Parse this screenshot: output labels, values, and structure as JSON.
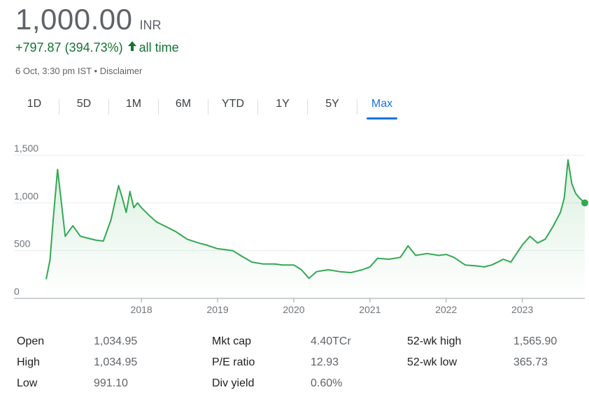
{
  "quote": {
    "price": "1,000.00",
    "currency": "INR",
    "change": "+797.87 (394.73%)",
    "change_period": "all time",
    "timestamp": "6 Oct, 3:30 pm IST",
    "separator": "•",
    "disclaimer": "Disclaimer",
    "up_color": "#137333"
  },
  "tabs": [
    {
      "label": "1D",
      "active": false
    },
    {
      "label": "5D",
      "active": false
    },
    {
      "label": "1M",
      "active": false
    },
    {
      "label": "6M",
      "active": false
    },
    {
      "label": "YTD",
      "active": false
    },
    {
      "label": "1Y",
      "active": false
    },
    {
      "label": "5Y",
      "active": false
    },
    {
      "label": "Max",
      "active": true
    }
  ],
  "chart_data": {
    "type": "line",
    "line_color": "#34a853",
    "fill": true,
    "grid": true,
    "ylim": [
      0,
      1500
    ],
    "yticks": [
      0,
      500,
      1000,
      1500
    ],
    "ytick_labels": [
      "0",
      "500",
      "1,000",
      "1,500"
    ],
    "xlim": [
      2016.75,
      2023.82
    ],
    "xticks": [
      2018,
      2019,
      2020,
      2021,
      2022,
      2023
    ],
    "xtick_labels": [
      "2018",
      "2019",
      "2020",
      "2021",
      "2022",
      "2023"
    ],
    "x": [
      2016.75,
      2016.8,
      2016.85,
      2016.9,
      2016.95,
      2017.0,
      2017.1,
      2017.2,
      2017.3,
      2017.4,
      2017.5,
      2017.6,
      2017.7,
      2017.75,
      2017.8,
      2017.85,
      2017.9,
      2017.95,
      2018.0,
      2018.1,
      2018.2,
      2018.3,
      2018.45,
      2018.6,
      2018.75,
      2018.85,
      2019.0,
      2019.1,
      2019.2,
      2019.3,
      2019.45,
      2019.6,
      2019.75,
      2019.85,
      2020.0,
      2020.1,
      2020.2,
      2020.3,
      2020.45,
      2020.6,
      2020.75,
      2020.9,
      2021.0,
      2021.1,
      2021.25,
      2021.4,
      2021.5,
      2021.6,
      2021.75,
      2021.9,
      2022.0,
      2022.1,
      2022.25,
      2022.4,
      2022.5,
      2022.6,
      2022.75,
      2022.85,
      2022.95,
      2023.0,
      2023.1,
      2023.2,
      2023.3,
      2023.4,
      2023.5,
      2023.55,
      2023.6,
      2023.65,
      2023.7,
      2023.75,
      2023.82
    ],
    "y": [
      200,
      400,
      900,
      1350,
      1000,
      650,
      760,
      650,
      630,
      610,
      600,
      820,
      1180,
      1050,
      900,
      1120,
      950,
      1000,
      950,
      870,
      800,
      760,
      700,
      620,
      580,
      560,
      520,
      510,
      500,
      450,
      380,
      360,
      360,
      350,
      350,
      300,
      210,
      280,
      300,
      280,
      270,
      300,
      330,
      420,
      410,
      430,
      550,
      450,
      470,
      450,
      460,
      430,
      350,
      340,
      330,
      350,
      410,
      380,
      500,
      560,
      650,
      580,
      620,
      750,
      900,
      1050,
      1450,
      1200,
      1100,
      1050,
      1000
    ]
  },
  "stats": [
    {
      "label": "Open",
      "value": "1,034.95"
    },
    {
      "label": "High",
      "value": "1,034.95"
    },
    {
      "label": "Low",
      "value": "991.10"
    },
    {
      "label": "Mkt cap",
      "value": "4.40TCr"
    },
    {
      "label": "P/E ratio",
      "value": "12.93"
    },
    {
      "label": "Div yield",
      "value": "0.60%"
    },
    {
      "label": "52-wk high",
      "value": "1,565.90"
    },
    {
      "label": "52-wk low",
      "value": "365.73"
    }
  ]
}
